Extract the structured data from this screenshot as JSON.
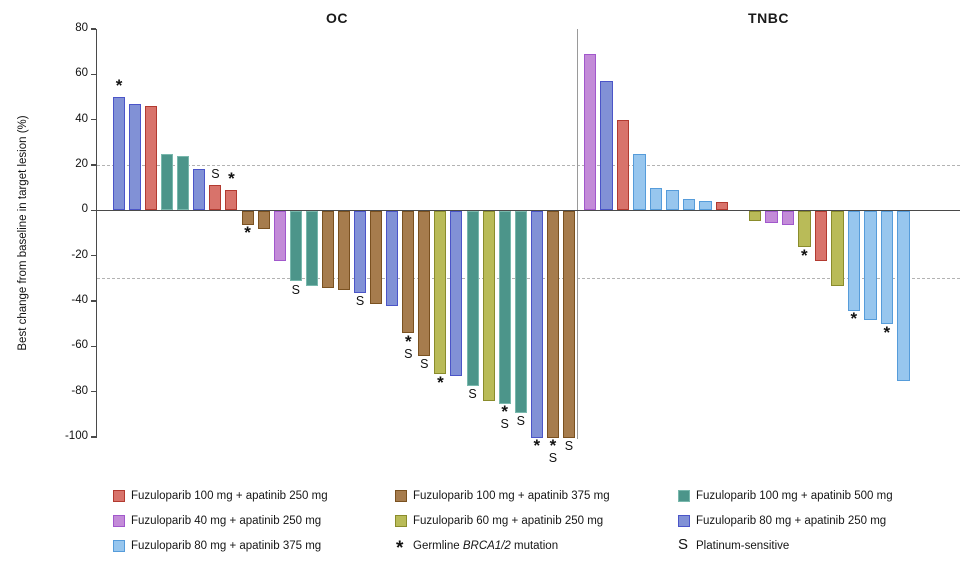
{
  "figure": {
    "background": "#ffffff",
    "axis_color": "#4a4a4a",
    "dashed_line_color": "#b3b3b3"
  },
  "chart_data": {
    "type": "bar",
    "subtype": "waterfall",
    "ylabel": "Best change from baseline in target lesion (%)",
    "ylim": [
      -100,
      80
    ],
    "yticks": [
      80,
      60,
      40,
      20,
      0,
      -20,
      -40,
      -60,
      -80,
      -100
    ],
    "reference_lines": [
      20,
      -30
    ],
    "grid": "off",
    "regimens": {
      "fz100_ap250": {
        "label": "Fuzuloparib 100 mg + apatinib 250 mg",
        "fill": "#D8736B",
        "stroke": "#B23A30"
      },
      "fz40_ap250": {
        "label": "Fuzuloparib 40 mg + apatinib 250 mg",
        "fill": "#C38BD8",
        "stroke": "#A158CC"
      },
      "fz80_ap375": {
        "label": "Fuzuloparib 80 mg + apatinib 375 mg",
        "fill": "#97C6EE",
        "stroke": "#569CDA"
      },
      "fz100_ap375": {
        "label": "Fuzuloparib 100 mg + apatinib 375 mg",
        "fill": "#A67C4D",
        "stroke": "#7A5120"
      },
      "fz60_ap250": {
        "label": "Fuzuloparib 60 mg + apatinib 250 mg",
        "fill": "#B9BB58",
        "stroke": "#8A8C2C"
      },
      "fz100_ap500": {
        "label": "Fuzuloparib 100 mg + apatinib 500 mg",
        "fill": "#4C958A",
        "stroke": "#79B8AD"
      },
      "fz80_ap250": {
        "label": "Fuzuloparib 80 mg + apatinib 250 mg",
        "fill": "#8191D6",
        "stroke": "#4B55C8"
      }
    },
    "panels": [
      {
        "title": "OC",
        "bars": [
          {
            "v": 50,
            "k": "fz80_ap250",
            "m": [
              "*"
            ]
          },
          {
            "v": 47,
            "k": "fz80_ap250"
          },
          {
            "v": 46,
            "k": "fz100_ap250"
          },
          {
            "v": 25,
            "k": "fz100_ap500"
          },
          {
            "v": 24,
            "k": "fz100_ap500"
          },
          {
            "v": 18,
            "k": "fz80_ap250"
          },
          {
            "v": 11,
            "k": "fz100_ap250",
            "m": [
              "S"
            ]
          },
          {
            "v": 9,
            "k": "fz100_ap250",
            "m": [
              "*"
            ]
          },
          {
            "v": -6,
            "k": "fz100_ap375",
            "m": [
              "*"
            ]
          },
          {
            "v": -8,
            "k": "fz100_ap375"
          },
          {
            "v": -22,
            "k": "fz40_ap250"
          },
          {
            "v": -31,
            "k": "fz100_ap500",
            "m": [
              "S"
            ]
          },
          {
            "v": -33,
            "k": "fz100_ap500"
          },
          {
            "v": -34,
            "k": "fz100_ap375"
          },
          {
            "v": -35,
            "k": "fz100_ap375"
          },
          {
            "v": -36,
            "k": "fz80_ap250",
            "m": [
              "S"
            ]
          },
          {
            "v": -41,
            "k": "fz100_ap375"
          },
          {
            "v": -42,
            "k": "fz80_ap250"
          },
          {
            "v": -54,
            "k": "fz100_ap375",
            "m": [
              "*",
              "S"
            ]
          },
          {
            "v": -64,
            "k": "fz100_ap375",
            "m": [
              "S"
            ]
          },
          {
            "v": -72,
            "k": "fz60_ap250",
            "m": [
              "*"
            ]
          },
          {
            "v": -73,
            "k": "fz80_ap250"
          },
          {
            "v": -77,
            "k": "fz100_ap500",
            "m": [
              "S"
            ]
          },
          {
            "v": -84,
            "k": "fz60_ap250"
          },
          {
            "v": -85,
            "k": "fz100_ap500",
            "m": [
              "*",
              "S"
            ]
          },
          {
            "v": -89,
            "k": "fz100_ap500",
            "m": [
              "S"
            ]
          },
          {
            "v": -100,
            "k": "fz80_ap250",
            "m": [
              "*"
            ]
          },
          {
            "v": -100,
            "k": "fz100_ap375",
            "m": [
              "*",
              "S"
            ]
          },
          {
            "v": -100,
            "k": "fz100_ap375",
            "m": [
              "S"
            ]
          }
        ]
      },
      {
        "title": "TNBC",
        "bars": [
          {
            "v": 69,
            "k": "fz40_ap250"
          },
          {
            "v": 57,
            "k": "fz80_ap250"
          },
          {
            "v": 40,
            "k": "fz100_ap250"
          },
          {
            "v": 25,
            "k": "fz80_ap375"
          },
          {
            "v": 10,
            "k": "fz80_ap375"
          },
          {
            "v": 9,
            "k": "fz80_ap375"
          },
          {
            "v": 5,
            "k": "fz80_ap375"
          },
          {
            "v": 4,
            "k": "fz80_ap375"
          },
          {
            "v": 3.5,
            "k": "fz100_ap250"
          },
          {
            "spacer": true
          },
          {
            "v": -4.5,
            "k": "fz60_ap250"
          },
          {
            "v": -5.5,
            "k": "fz40_ap250"
          },
          {
            "v": -6,
            "k": "fz40_ap250"
          },
          {
            "v": -16,
            "k": "fz60_ap250",
            "m": [
              "*"
            ]
          },
          {
            "v": -22,
            "k": "fz100_ap250"
          },
          {
            "v": -33,
            "k": "fz60_ap250"
          },
          {
            "v": -44,
            "k": "fz80_ap375",
            "m": [
              "*"
            ]
          },
          {
            "v": -48,
            "k": "fz80_ap375"
          },
          {
            "v": -50,
            "k": "fz80_ap375",
            "m": [
              "*"
            ]
          },
          {
            "v": -75,
            "k": "fz80_ap375"
          }
        ]
      }
    ],
    "marker_defs": {
      "asterisk": {
        "symbol": "*",
        "label_prefix": "Germline ",
        "label_italic": "BRCA1/2",
        "label_suffix": " mutation"
      },
      "s": {
        "symbol": "S",
        "label": "Platinum-sensitive"
      }
    },
    "legend_columns": [
      [
        "fz100_ap250",
        "fz40_ap250",
        "fz80_ap375"
      ],
      [
        "fz100_ap375",
        "fz60_ap250",
        "@asterisk"
      ],
      [
        "fz100_ap500",
        "fz80_ap250",
        "@s"
      ]
    ]
  }
}
